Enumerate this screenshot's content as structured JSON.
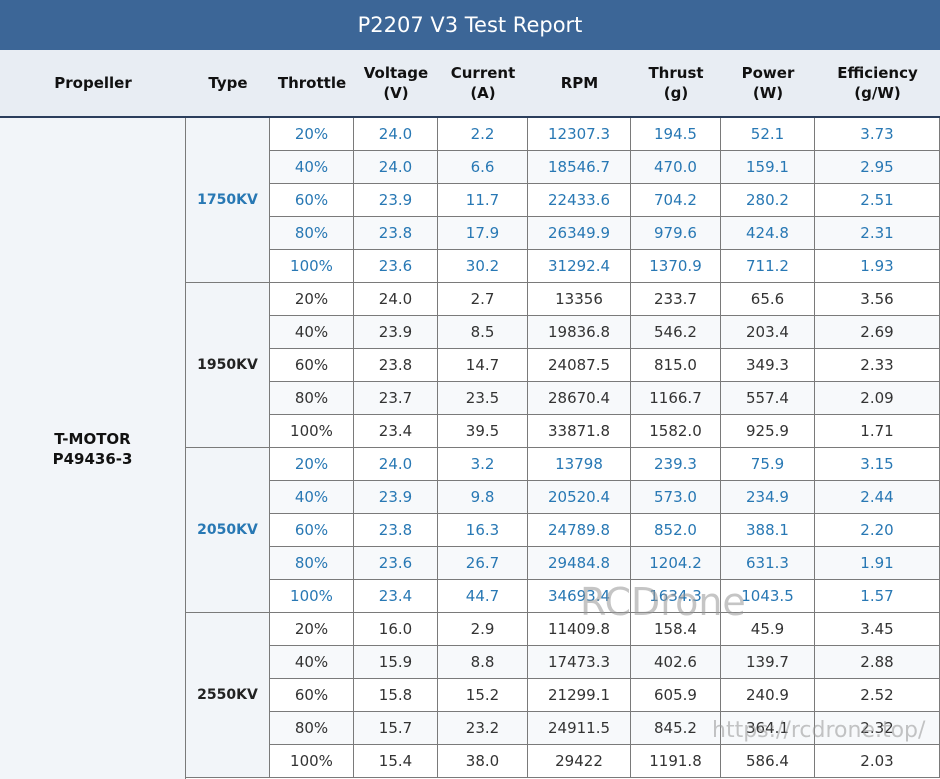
{
  "title": "P2207 V3 Test Report",
  "headers": {
    "propeller": "Propeller",
    "type": "Type",
    "throttle": "Throttle",
    "voltage": "Voltage",
    "voltage_unit": "(V)",
    "current": "Current",
    "current_unit": "(A)",
    "rpm": "RPM",
    "thrust": "Thrust",
    "thrust_unit": "(g)",
    "power": "Power",
    "power_unit": "(W)",
    "efficiency": "Efficiency",
    "efficiency_unit": "(g/W)"
  },
  "propeller": {
    "line1": "T-MOTOR",
    "line2": "P49436-3"
  },
  "groups": [
    {
      "type": "1750KV",
      "highlight": true,
      "rows": [
        [
          "20%",
          "24.0",
          "2.2",
          "12307.3",
          "194.5",
          "52.1",
          "3.73"
        ],
        [
          "40%",
          "24.0",
          "6.6",
          "18546.7",
          "470.0",
          "159.1",
          "2.95"
        ],
        [
          "60%",
          "23.9",
          "11.7",
          "22433.6",
          "704.2",
          "280.2",
          "2.51"
        ],
        [
          "80%",
          "23.8",
          "17.9",
          "26349.9",
          "979.6",
          "424.8",
          "2.31"
        ],
        [
          "100%",
          "23.6",
          "30.2",
          "31292.4",
          "1370.9",
          "711.2",
          "1.93"
        ]
      ]
    },
    {
      "type": "1950KV",
      "highlight": false,
      "rows": [
        [
          "20%",
          "24.0",
          "2.7",
          "13356",
          "233.7",
          "65.6",
          "3.56"
        ],
        [
          "40%",
          "23.9",
          "8.5",
          "19836.8",
          "546.2",
          "203.4",
          "2.69"
        ],
        [
          "60%",
          "23.8",
          "14.7",
          "24087.5",
          "815.0",
          "349.3",
          "2.33"
        ],
        [
          "80%",
          "23.7",
          "23.5",
          "28670.4",
          "1166.7",
          "557.4",
          "2.09"
        ],
        [
          "100%",
          "23.4",
          "39.5",
          "33871.8",
          "1582.0",
          "925.9",
          "1.71"
        ]
      ]
    },
    {
      "type": "2050KV",
      "highlight": true,
      "rows": [
        [
          "20%",
          "24.0",
          "3.2",
          "13798",
          "239.3",
          "75.9",
          "3.15"
        ],
        [
          "40%",
          "23.9",
          "9.8",
          "20520.4",
          "573.0",
          "234.9",
          "2.44"
        ],
        [
          "60%",
          "23.8",
          "16.3",
          "24789.8",
          "852.0",
          "388.1",
          "2.20"
        ],
        [
          "80%",
          "23.6",
          "26.7",
          "29484.8",
          "1204.2",
          "631.3",
          "1.91"
        ],
        [
          "100%",
          "23.4",
          "44.7",
          "34693.4",
          "1634.3",
          "1043.5",
          "1.57"
        ]
      ]
    },
    {
      "type": "2550KV",
      "highlight": false,
      "rows": [
        [
          "20%",
          "16.0",
          "2.9",
          "11409.8",
          "158.4",
          "45.9",
          "3.45"
        ],
        [
          "40%",
          "15.9",
          "8.8",
          "17473.3",
          "402.6",
          "139.7",
          "2.88"
        ],
        [
          "60%",
          "15.8",
          "15.2",
          "21299.1",
          "605.9",
          "240.9",
          "2.52"
        ],
        [
          "80%",
          "15.7",
          "23.2",
          "24911.5",
          "845.2",
          "364.1",
          "2.32"
        ],
        [
          "100%",
          "15.4",
          "38.0",
          "29422",
          "1191.8",
          "586.4",
          "2.03"
        ]
      ]
    }
  ],
  "watermarks": {
    "brand": "RCDrone",
    "url": "https://rcdrone.top/"
  },
  "colors": {
    "title_bar": "#3c6697",
    "highlight_text": "#2878b4",
    "header_bg": "#e8edf3"
  }
}
